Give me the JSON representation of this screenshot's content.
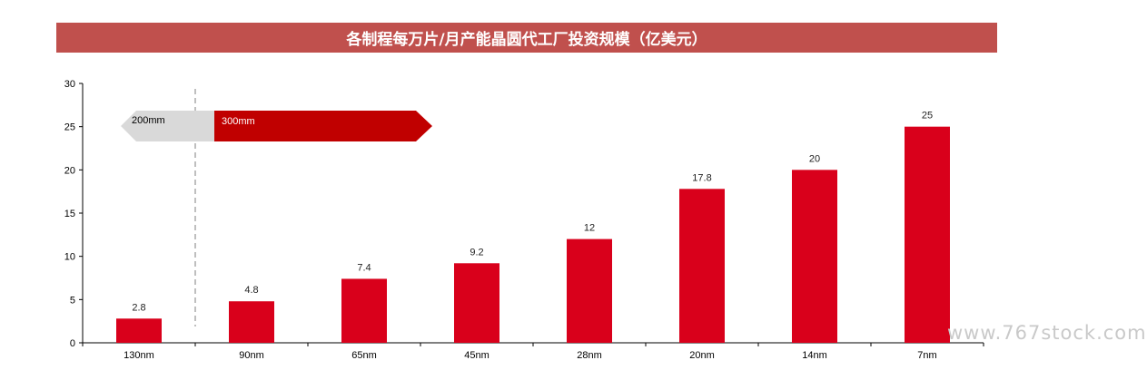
{
  "header": {
    "title": "各制程每万片/月产能晶圆代工厂投资规模（亿美元）",
    "bar_color": "#c0504d"
  },
  "annotations": {
    "left_arrow_label": "200mm",
    "right_arrow_label": "300mm",
    "left_arrow_color": "#d9d9d9",
    "right_arrow_color": "#c00000"
  },
  "watermark": "www.767stock.com",
  "chart_data": {
    "type": "bar",
    "title": "各制程每万片/月产能晶圆代工厂投资规模（亿美元）",
    "categories": [
      "130nm",
      "90nm",
      "65nm",
      "45nm",
      "28nm",
      "20nm",
      "14nm",
      "7nm"
    ],
    "values": [
      2.8,
      4.8,
      7.4,
      9.2,
      12,
      17.8,
      20,
      25
    ],
    "data_labels": [
      "2.8",
      "4.8",
      "7.4",
      "9.2",
      "12",
      "17.8",
      "20",
      "25"
    ],
    "ylim": [
      0,
      30
    ],
    "yticks": [
      0,
      5,
      10,
      15,
      20,
      25,
      30
    ],
    "ytick_labels": [
      "0",
      "5",
      "10",
      "15",
      "20",
      "25",
      "30"
    ],
    "xlabel": "",
    "ylabel": "",
    "grid": false,
    "bar_color": "#d9001b"
  }
}
